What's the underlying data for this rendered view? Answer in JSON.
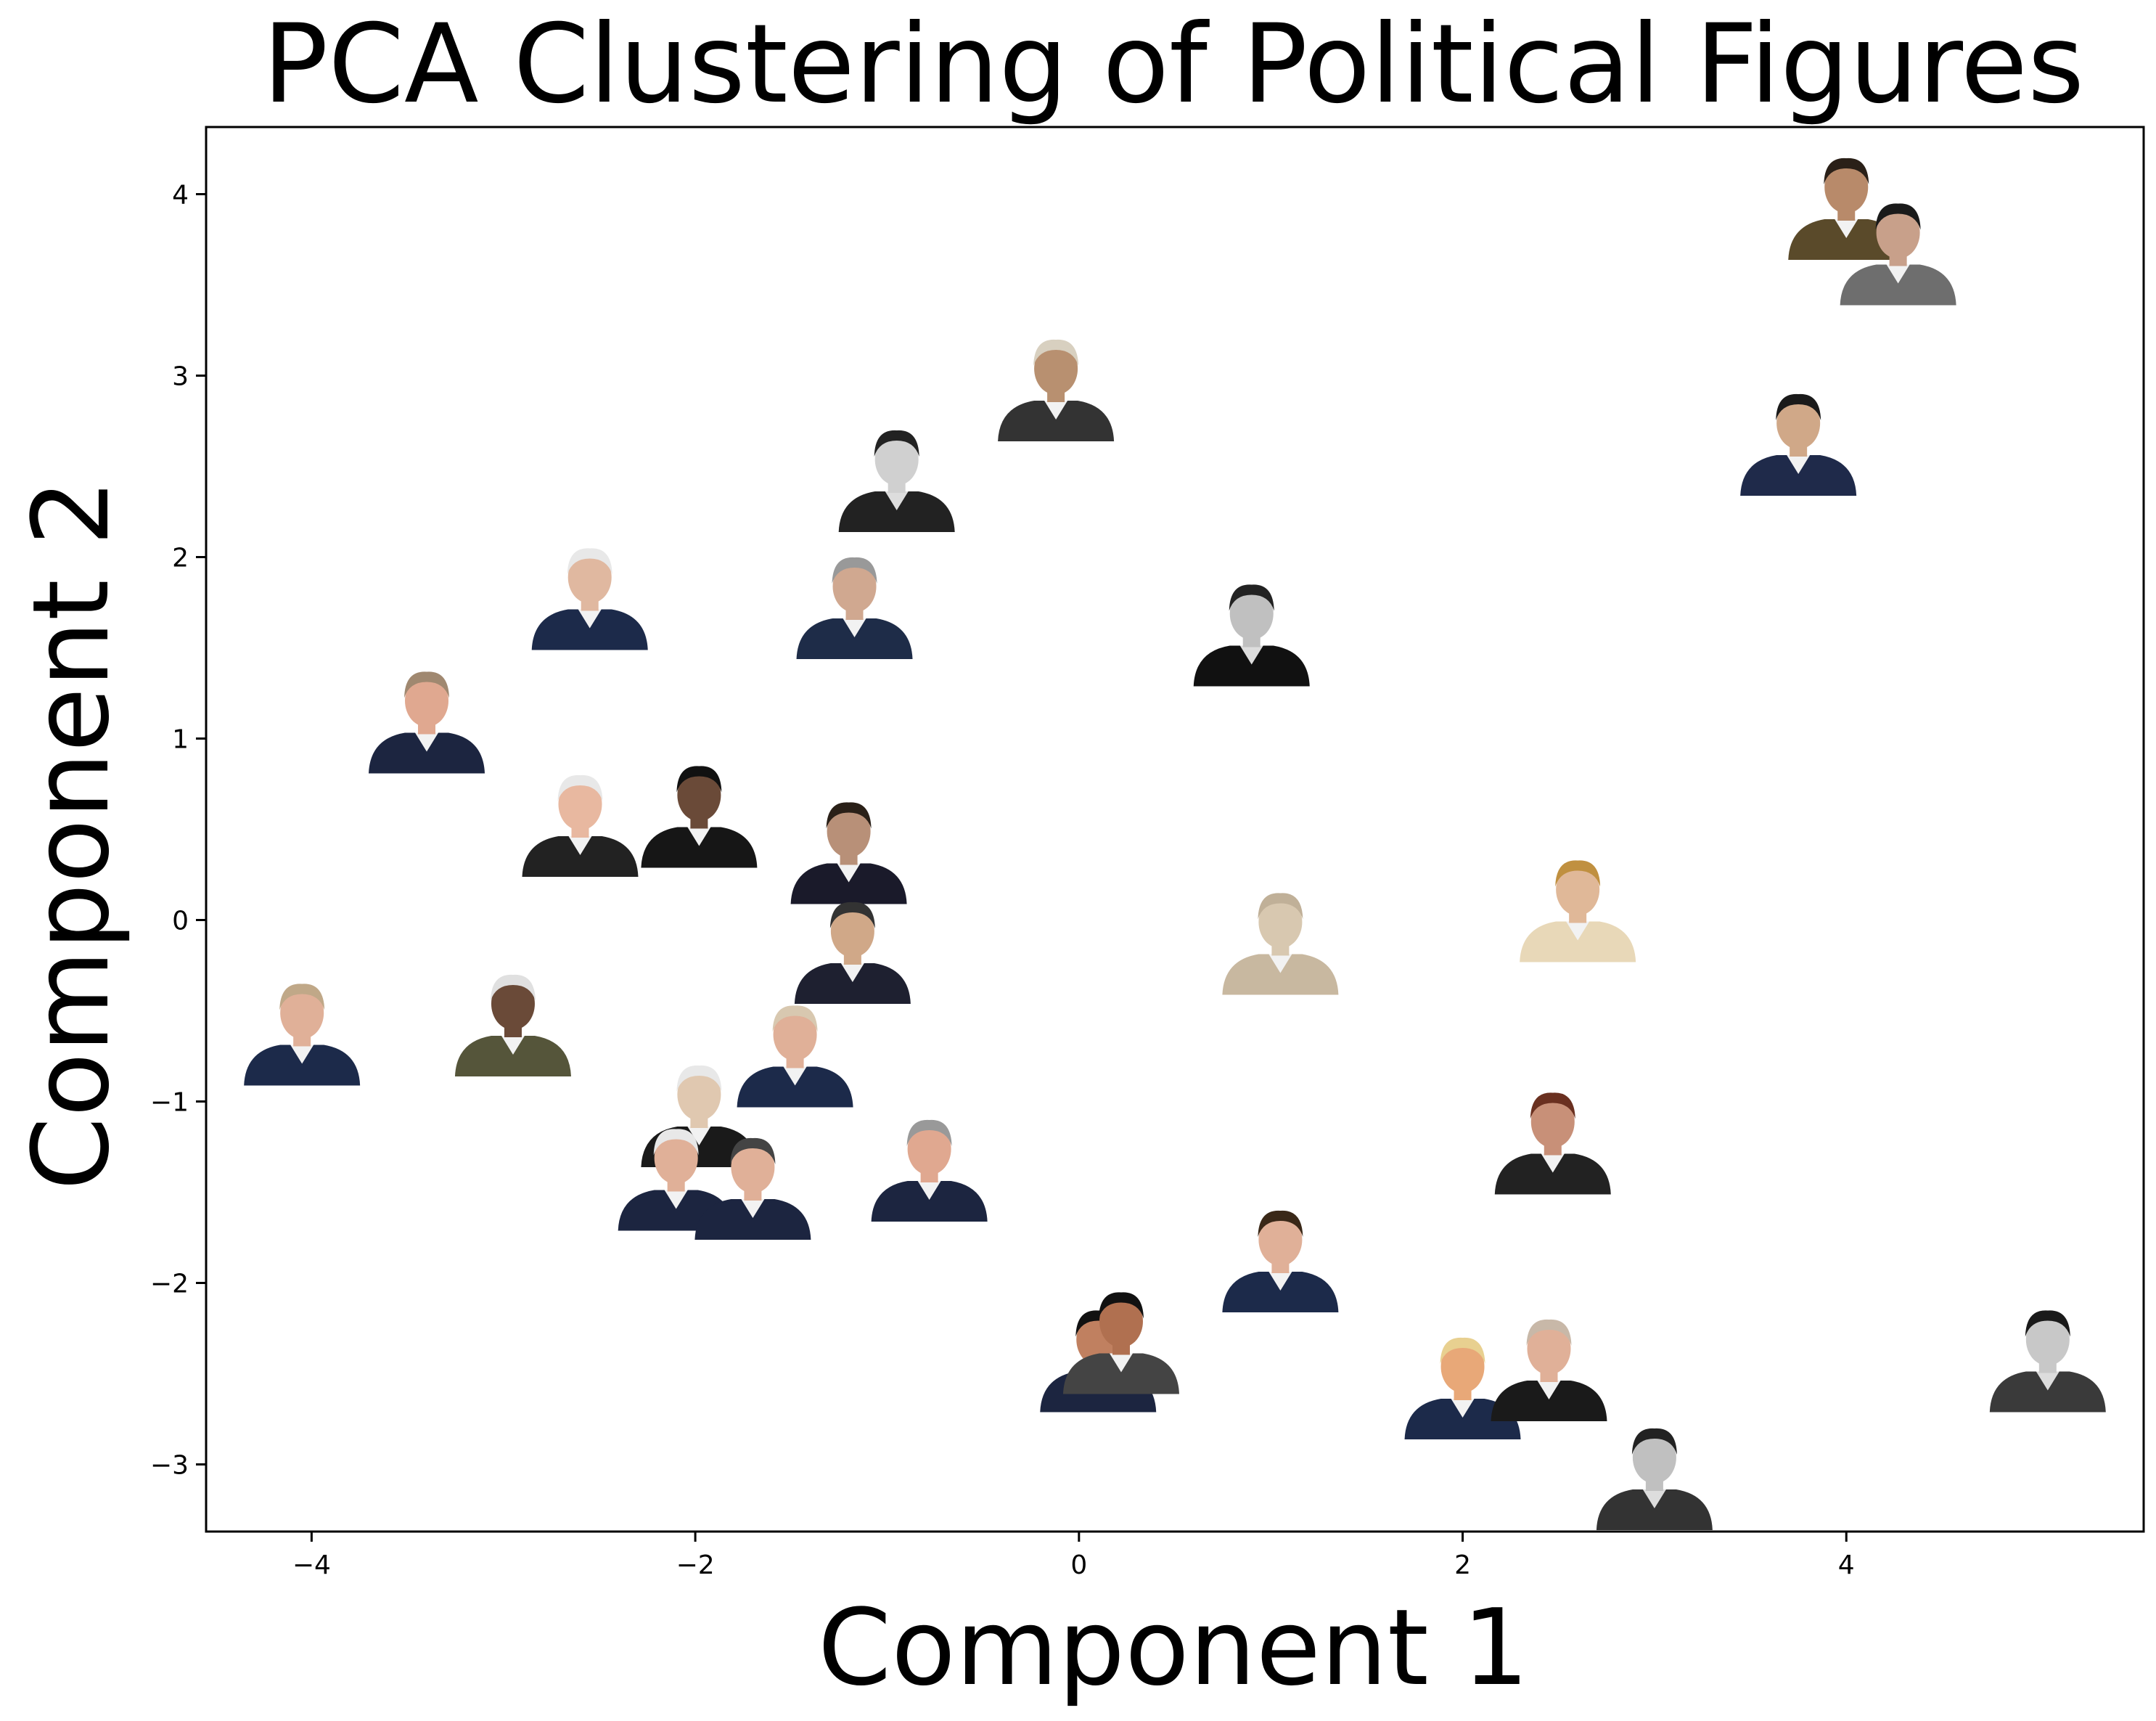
{
  "chart_data": {
    "type": "scatter",
    "title": "PCA Clustering of Political Figures",
    "xlabel": "Component 1",
    "ylabel": "Component 2",
    "xlim": [
      -4.55,
      5.55
    ],
    "ylim": [
      -3.37,
      4.37
    ],
    "xticks": [
      -4,
      -2,
      0,
      2,
      4
    ],
    "yticks": [
      -3,
      -2,
      -1,
      0,
      1,
      2,
      3,
      4
    ],
    "xtick_labels": [
      "−4",
      "−2",
      "0",
      "2",
      "4"
    ],
    "ytick_labels": [
      "−3",
      "−2",
      "−1",
      "0",
      "1",
      "2",
      "3",
      "4"
    ],
    "grid": false,
    "marker_style": "portrait-photo",
    "points": [
      {
        "x": 4.0,
        "y": 3.95,
        "suit": "#5a4a2a",
        "skin": "#b88a6a",
        "hair": "#2a2018",
        "bw": false
      },
      {
        "x": 4.27,
        "y": 3.7,
        "suit": "#6e6e6e",
        "skin": "#c8a08a",
        "hair": "#1a1a1a",
        "bw": false
      },
      {
        "x": 3.75,
        "y": 2.65,
        "suit": "#1f2a4a",
        "skin": "#d0a888",
        "hair": "#1a1a1a",
        "bw": false
      },
      {
        "x": -0.12,
        "y": 2.95,
        "suit": "#333333",
        "skin": "#b89070",
        "hair": "#d8d0c0",
        "bw": false
      },
      {
        "x": -0.95,
        "y": 2.45,
        "suit": "#222222",
        "skin": "#d0d0d0",
        "hair": "#222222",
        "bw": true
      },
      {
        "x": -2.55,
        "y": 1.8,
        "suit": "#1c2a4a",
        "skin": "#e0b8a0",
        "hair": "#e8e8e8",
        "bw": false
      },
      {
        "x": -1.17,
        "y": 1.75,
        "suit": "#1e2c48",
        "skin": "#d0a890",
        "hair": "#999999",
        "bw": false
      },
      {
        "x": 0.9,
        "y": 1.6,
        "suit": "#111111",
        "skin": "#c0c0c0",
        "hair": "#222222",
        "bw": true
      },
      {
        "x": -3.4,
        "y": 1.12,
        "suit": "#1c2540",
        "skin": "#e0a890",
        "hair": "#a08870",
        "bw": false
      },
      {
        "x": -2.6,
        "y": 0.55,
        "suit": "#222222",
        "skin": "#e8b8a0",
        "hair": "#e8e8e8",
        "bw": false
      },
      {
        "x": -1.98,
        "y": 0.6,
        "suit": "#161616",
        "skin": "#6a4a38",
        "hair": "#111111",
        "bw": false
      },
      {
        "x": -1.2,
        "y": 0.4,
        "suit": "#1a1a2a",
        "skin": "#b89078",
        "hair": "#2a2018",
        "bw": false
      },
      {
        "x": 1.05,
        "y": -0.1,
        "suit": "#c8b8a0",
        "skin": "#d8c8b0",
        "hair": "#c0b098",
        "bw": false
      },
      {
        "x": 2.6,
        "y": 0.08,
        "suit": "#e8d8b8",
        "skin": "#e0b898",
        "hair": "#c09040",
        "bw": false
      },
      {
        "x": -1.18,
        "y": -0.15,
        "suit": "#1e2030",
        "skin": "#d0a888",
        "hair": "#333333",
        "bw": false
      },
      {
        "x": -4.05,
        "y": -0.6,
        "suit": "#1c2a4a",
        "skin": "#e0b098",
        "hair": "#c0a888",
        "bw": false
      },
      {
        "x": -2.95,
        "y": -0.55,
        "suit": "#55553a",
        "skin": "#6a4a38",
        "hair": "#e0e0e0",
        "bw": false
      },
      {
        "x": -1.48,
        "y": -0.72,
        "suit": "#1c2a4a",
        "skin": "#e0b098",
        "hair": "#d8c8b0",
        "bw": false
      },
      {
        "x": -1.98,
        "y": -1.05,
        "suit": "#1a1a1a",
        "skin": "#e0c8b0",
        "hair": "#e8e8e8",
        "bw": false
      },
      {
        "x": -2.1,
        "y": -1.4,
        "suit": "#1c2540",
        "skin": "#e0b098",
        "hair": "#e8e8e8",
        "bw": false
      },
      {
        "x": -1.7,
        "y": -1.45,
        "suit": "#1c2540",
        "skin": "#e0b098",
        "hair": "#444444",
        "bw": false
      },
      {
        "x": -0.78,
        "y": -1.35,
        "suit": "#1c2540",
        "skin": "#e0a890",
        "hair": "#999999",
        "bw": false
      },
      {
        "x": 2.47,
        "y": -1.2,
        "suit": "#222222",
        "skin": "#c89078",
        "hair": "#6a3020",
        "bw": false
      },
      {
        "x": 1.05,
        "y": -1.85,
        "suit": "#1c2a4a",
        "skin": "#e0b098",
        "hair": "#3a2818",
        "bw": false
      },
      {
        "x": 0.1,
        "y": -2.4,
        "suit": "#1c2540",
        "skin": "#c08060",
        "hair": "#111111",
        "bw": false
      },
      {
        "x": 0.22,
        "y": -2.3,
        "suit": "#444444",
        "skin": "#b07050",
        "hair": "#111111",
        "bw": false
      },
      {
        "x": 2.0,
        "y": -2.55,
        "suit": "#1c2a4a",
        "skin": "#e8a878",
        "hair": "#e8d090",
        "bw": false
      },
      {
        "x": 2.45,
        "y": -2.45,
        "suit": "#1a1a1a",
        "skin": "#e0b098",
        "hair": "#c8b8a8",
        "bw": false
      },
      {
        "x": 3.0,
        "y": -3.05,
        "suit": "#333333",
        "skin": "#c0c0c0",
        "hair": "#222222",
        "bw": true
      },
      {
        "x": 5.05,
        "y": -2.4,
        "suit": "#3a3a3a",
        "skin": "#c8c8c8",
        "hair": "#1a1a1a",
        "bw": true
      }
    ]
  }
}
